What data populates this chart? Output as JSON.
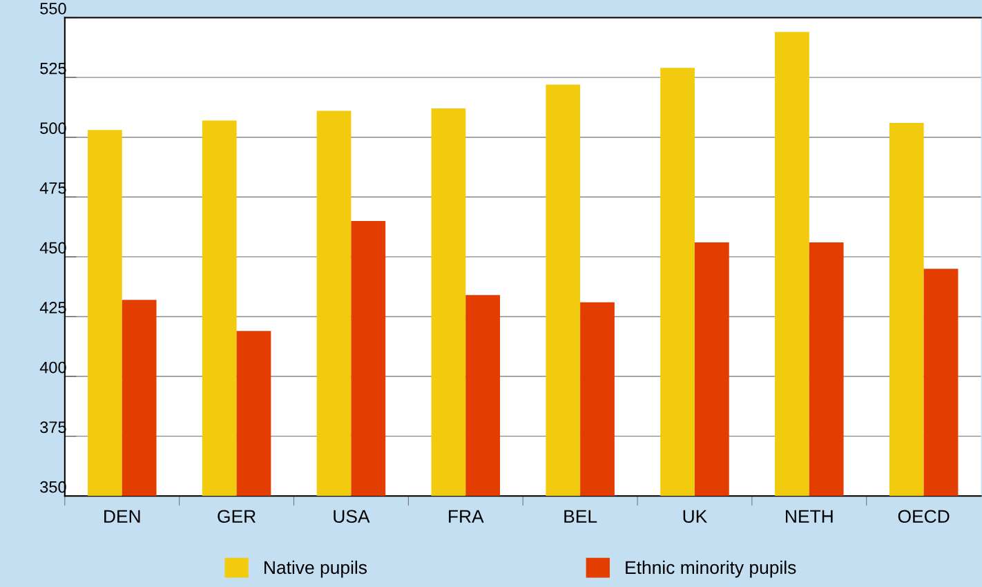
{
  "chart_data": {
    "type": "bar",
    "categories": [
      "DEN",
      "GER",
      "USA",
      "FRA",
      "BEL",
      "UK",
      "NETH",
      "OECD"
    ],
    "series": [
      {
        "name": "Native pupils",
        "color": "#f2cb0e",
        "values": [
          503,
          507,
          511,
          512,
          522,
          529,
          544,
          506
        ]
      },
      {
        "name": "Ethnic minority pupils",
        "color": "#e33e00",
        "values": [
          432,
          419,
          465,
          434,
          431,
          456,
          456,
          445
        ]
      }
    ],
    "ylim": [
      350,
      550
    ],
    "yticks": [
      350,
      375,
      400,
      425,
      450,
      475,
      500,
      525,
      550
    ],
    "grid": "y",
    "legend": "bottom"
  }
}
